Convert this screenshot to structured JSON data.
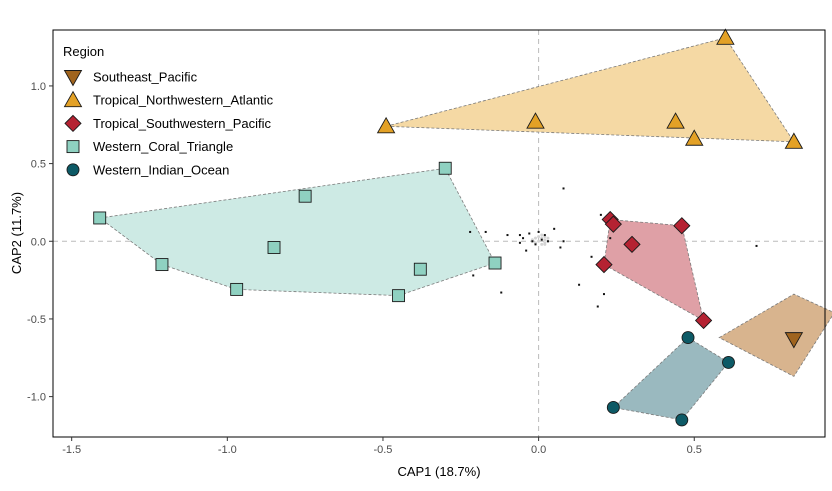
{
  "chart_data": {
    "type": "scatter",
    "title": "",
    "xlabel": "CAP1 (18.7%)",
    "ylabel": "CAP2 (11.7%)",
    "xlim": [
      -1.56,
      0.92
    ],
    "ylim": [
      -1.26,
      1.36
    ],
    "xticks": [
      {
        "value": -1.5,
        "label": "-1.5"
      },
      {
        "value": -1.0,
        "label": "-1.0"
      },
      {
        "value": -0.5,
        "label": "-0.5"
      },
      {
        "value": 0.0,
        "label": "0.0"
      },
      {
        "value": 0.5,
        "label": "0.5"
      }
    ],
    "yticks": [
      {
        "value": -1.0,
        "label": "-1.0"
      },
      {
        "value": -0.5,
        "label": "-0.5"
      },
      {
        "value": 0.0,
        "label": "0.0"
      },
      {
        "value": 0.5,
        "label": "0.5"
      },
      {
        "value": 1.0,
        "label": "1.0"
      }
    ],
    "grid": false,
    "reference_lines": {
      "x": 0,
      "y": 0,
      "style": "dashed",
      "color": "#bbbbbb"
    },
    "legend": {
      "title": "Region",
      "placement": "top-left"
    },
    "series": [
      {
        "name": "Southeast_Pacific",
        "marker": "triangle-down",
        "color": "#a0641e",
        "hull_color": "#d8b48e",
        "points": [
          [
            0.82,
            -0.63
          ]
        ],
        "hull": [
          [
            0.58,
            -0.62
          ],
          [
            0.82,
            -0.34
          ],
          [
            0.95,
            -0.46
          ],
          [
            0.82,
            -0.87
          ]
        ]
      },
      {
        "name": "Tropical_Northwestern_Atlantic",
        "marker": "triangle-up",
        "color": "#e3a126",
        "hull_color": "#f5d9a4",
        "points": [
          [
            -0.49,
            0.74
          ],
          [
            -0.01,
            0.77
          ],
          [
            0.44,
            0.77
          ],
          [
            0.5,
            0.66
          ],
          [
            0.6,
            1.31
          ],
          [
            0.82,
            0.64
          ]
        ],
        "hull": [
          [
            -0.49,
            0.74
          ],
          [
            0.6,
            1.31
          ],
          [
            0.82,
            0.64
          ]
        ]
      },
      {
        "name": "Tropical_Southwestern_Pacific",
        "marker": "diamond",
        "color": "#b52232",
        "hull_color": "#dfa0a6",
        "points": [
          [
            0.23,
            0.14
          ],
          [
            0.24,
            0.11
          ],
          [
            0.3,
            -0.02
          ],
          [
            0.21,
            -0.15
          ],
          [
            0.46,
            0.1
          ],
          [
            0.53,
            -0.51
          ]
        ],
        "hull": [
          [
            0.23,
            0.14
          ],
          [
            0.46,
            0.1
          ],
          [
            0.53,
            -0.51
          ],
          [
            0.21,
            -0.15
          ]
        ]
      },
      {
        "name": "Western_Coral_Triangle",
        "marker": "square",
        "color": "#8fd1c1",
        "hull_color": "#cdeae4",
        "points": [
          [
            -1.41,
            0.15
          ],
          [
            -1.21,
            -0.15
          ],
          [
            -0.97,
            -0.31
          ],
          [
            -0.85,
            -0.04
          ],
          [
            -0.75,
            0.29
          ],
          [
            -0.45,
            -0.35
          ],
          [
            -0.38,
            -0.18
          ],
          [
            -0.3,
            0.47
          ],
          [
            -0.14,
            -0.14
          ]
        ],
        "hull": [
          [
            -1.41,
            0.15
          ],
          [
            -0.3,
            0.47
          ],
          [
            -0.14,
            -0.14
          ],
          [
            -0.45,
            -0.35
          ],
          [
            -0.97,
            -0.31
          ],
          [
            -1.21,
            -0.15
          ]
        ]
      },
      {
        "name": "Western_Indian_Ocean",
        "marker": "circle",
        "color": "#0d5a66",
        "hull_color": "#9ab9bf",
        "points": [
          [
            0.48,
            -0.62
          ],
          [
            0.61,
            -0.78
          ],
          [
            0.24,
            -1.07
          ],
          [
            0.46,
            -1.15
          ]
        ],
        "hull": [
          [
            0.48,
            -0.62
          ],
          [
            0.61,
            -0.78
          ],
          [
            0.46,
            -1.15
          ],
          [
            0.24,
            -1.07
          ]
        ]
      }
    ],
    "species_points": [
      [
        0.08,
        0.34
      ],
      [
        0.2,
        0.17
      ],
      [
        0.23,
        0.02
      ],
      [
        0.17,
        -0.1
      ],
      [
        0.13,
        -0.28
      ],
      [
        0.21,
        -0.34
      ],
      [
        0.19,
        -0.42
      ],
      [
        0.7,
        -0.03
      ],
      [
        -0.22,
        0.06
      ],
      [
        -0.21,
        -0.22
      ],
      [
        -0.12,
        -0.33
      ],
      [
        -0.17,
        0.06
      ],
      [
        -0.1,
        0.04
      ],
      [
        -0.06,
        0.04
      ],
      [
        -0.05,
        0.02
      ],
      [
        -0.03,
        0.05
      ],
      [
        -0.02,
        0.0
      ],
      [
        -0.01,
        -0.02
      ],
      [
        0.0,
        0.06
      ],
      [
        0.02,
        0.04
      ],
      [
        0.05,
        0.08
      ],
      [
        0.08,
        0.0
      ],
      [
        0.07,
        -0.04
      ],
      [
        -0.04,
        -0.06
      ],
      [
        -0.06,
        -0.01
      ],
      [
        0.03,
        0.0
      ],
      [
        0.01,
        0.01
      ]
    ],
    "species_cloud": [
      [
        0.01,
        0.02
      ],
      [
        0.02,
        0.01
      ],
      [
        0.0,
        0.0
      ],
      [
        0.02,
        -0.01
      ],
      [
        -0.01,
        0.02
      ],
      [
        0.03,
        0.0
      ],
      [
        -0.02,
        0.0
      ],
      [
        0.01,
        -0.02
      ],
      [
        0.02,
        0.03
      ],
      [
        0.0,
        0.03
      ],
      [
        -0.01,
        -0.01
      ],
      [
        0.03,
        0.02
      ],
      [
        0.02,
        -0.02
      ],
      [
        0.01,
        0.04
      ],
      [
        -0.02,
        0.01
      ]
    ]
  }
}
